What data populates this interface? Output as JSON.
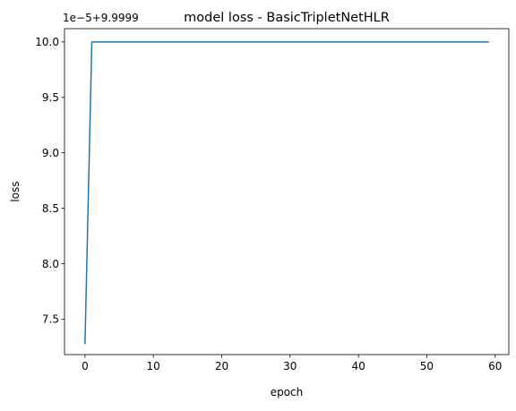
{
  "chart_data": {
    "type": "line",
    "title": "model loss - BasicTripletNetHLR",
    "xlabel": "epoch",
    "ylabel": "loss",
    "offset_label": "1e−5+9.9999",
    "xlim": [
      -3,
      62
    ],
    "ylim": [
      7.18,
      10.12
    ],
    "x_ticks": [
      0,
      10,
      20,
      30,
      40,
      50,
      60
    ],
    "x_tick_labels": [
      "0",
      "10",
      "20",
      "30",
      "40",
      "50",
      "60"
    ],
    "y_ticks": [
      7.5,
      8.0,
      8.5,
      9.0,
      9.5,
      10.0
    ],
    "y_tick_labels": [
      "7.5",
      "8.0",
      "8.5",
      "9.0",
      "9.5",
      "10.0"
    ],
    "grid": false,
    "series": [
      {
        "color": "#1f77b4",
        "x": [
          0,
          1,
          2,
          3,
          4,
          5,
          6,
          7,
          8,
          9,
          10,
          11,
          12,
          13,
          14,
          15,
          16,
          17,
          18,
          19,
          20,
          21,
          22,
          23,
          24,
          25,
          26,
          27,
          28,
          29,
          30,
          31,
          32,
          33,
          34,
          35,
          36,
          37,
          38,
          39,
          40,
          41,
          42,
          43,
          44,
          45,
          46,
          47,
          48,
          49,
          50,
          51,
          52,
          53,
          54,
          55,
          56,
          57,
          58,
          59
        ],
        "values": [
          7.28,
          10.0,
          10.0,
          10.0,
          10.0,
          10.0,
          10.0,
          10.0,
          10.0,
          10.0,
          10.0,
          10.0,
          10.0,
          10.0,
          10.0,
          10.0,
          10.0,
          10.0,
          10.0,
          10.0,
          10.0,
          10.0,
          10.0,
          10.0,
          10.0,
          10.0,
          10.0,
          10.0,
          10.0,
          10.0,
          10.0,
          10.0,
          10.0,
          10.0,
          10.0,
          10.0,
          10.0,
          10.0,
          10.0,
          10.0,
          10.0,
          10.0,
          10.0,
          10.0,
          10.0,
          10.0,
          10.0,
          10.0,
          10.0,
          10.0,
          10.0,
          10.0,
          10.0,
          10.0,
          10.0,
          10.0,
          10.0,
          10.0,
          10.0,
          10.0
        ]
      }
    ]
  }
}
